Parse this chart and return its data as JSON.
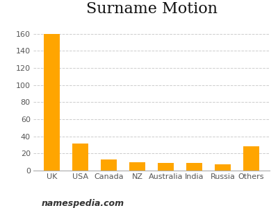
{
  "categories": [
    "UK",
    "USA",
    "Canada",
    "NZ",
    "Australia",
    "India",
    "Russia",
    "Others"
  ],
  "values": [
    160,
    32,
    13,
    10,
    9,
    9,
    7,
    28
  ],
  "bar_color": "#FFA500",
  "title": "Surname Motion",
  "title_fontsize": 16,
  "title_font": "serif",
  "ylim": [
    0,
    175
  ],
  "yticks": [
    0,
    20,
    40,
    60,
    80,
    100,
    120,
    140,
    160
  ],
  "background_color": "#ffffff",
  "grid_color": "#cccccc",
  "watermark": "namespedia.com",
  "bar_edge_color": "none",
  "tick_fontsize": 8,
  "watermark_fontsize": 9
}
